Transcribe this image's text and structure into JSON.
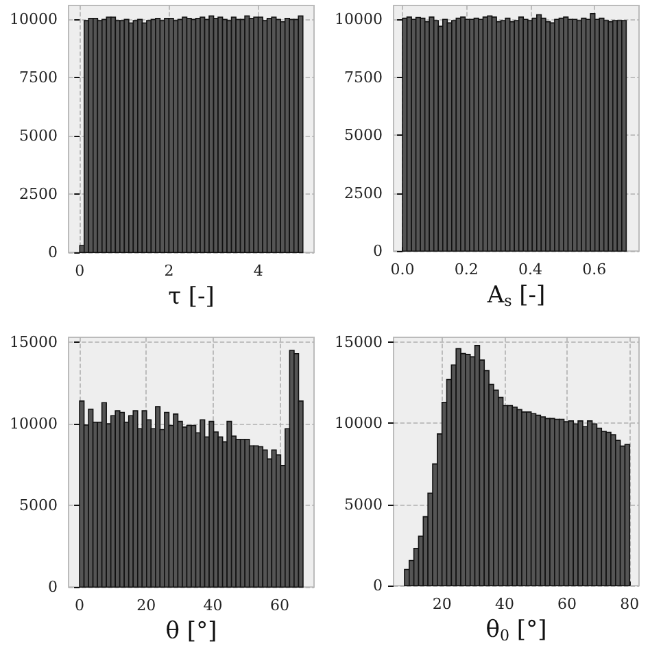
{
  "chart_data": [
    {
      "type": "histogram",
      "xlabel": "τ [-]",
      "color": "#555555",
      "grid": true,
      "bins": [
        0,
        0.1,
        0.2,
        0.3,
        0.4,
        0.5,
        0.6,
        0.7,
        0.8,
        0.9,
        1,
        1.1,
        1.2,
        1.3,
        1.4,
        1.5,
        1.6,
        1.7,
        1.8,
        1.9,
        2,
        2.1,
        2.2,
        2.3,
        2.4,
        2.5,
        2.6,
        2.7,
        2.8,
        2.9,
        3,
        3.1,
        3.2,
        3.3,
        3.4,
        3.5,
        3.6,
        3.7,
        3.8,
        3.9,
        4,
        4.1,
        4.2,
        4.3,
        4.4,
        4.5,
        4.6,
        4.7,
        4.8,
        4.9,
        5
      ],
      "values": [
        300,
        9950,
        10050,
        10050,
        9950,
        10000,
        10100,
        10100,
        9950,
        9950,
        10000,
        9850,
        9950,
        10000,
        9850,
        9950,
        10000,
        10050,
        9950,
        10050,
        10050,
        9950,
        10000,
        10100,
        10050,
        10000,
        10050,
        10100,
        10000,
        10150,
        10050,
        10100,
        10000,
        9950,
        10100,
        10000,
        10000,
        10150,
        10050,
        10100,
        10100,
        9950,
        10050,
        10100,
        10000,
        9900,
        10050,
        10000,
        10000,
        10150
      ],
      "xlim": [
        -0.25,
        5.25
      ],
      "xticks": [
        0,
        2,
        4
      ],
      "ylim": [
        0,
        10600
      ],
      "yticks": [
        0,
        2500,
        5000,
        7500,
        10000
      ]
    },
    {
      "type": "histogram",
      "xlabel": "A$_{s}$ [-]",
      "color": "#555555",
      "grid": true,
      "bins": [
        0,
        0.014,
        0.028,
        0.042,
        0.056,
        0.07,
        0.084,
        0.098,
        0.112,
        0.126,
        0.14,
        0.154,
        0.168,
        0.182,
        0.196,
        0.21,
        0.224,
        0.238,
        0.252,
        0.266,
        0.28,
        0.294,
        0.308,
        0.322,
        0.336,
        0.35,
        0.364,
        0.378,
        0.392,
        0.406,
        0.42,
        0.434,
        0.448,
        0.462,
        0.476,
        0.49,
        0.504,
        0.518,
        0.532,
        0.546,
        0.56,
        0.574,
        0.588,
        0.602,
        0.616,
        0.63,
        0.644,
        0.658,
        0.672,
        0.686,
        0.7
      ],
      "values": [
        10050,
        10100,
        10000,
        10080,
        10050,
        9900,
        10100,
        9950,
        9700,
        10000,
        9850,
        9950,
        10050,
        10100,
        10000,
        10000,
        10050,
        10000,
        10100,
        10150,
        10100,
        9900,
        9950,
        10050,
        9900,
        9950,
        10100,
        10000,
        9950,
        10050,
        10200,
        10050,
        9900,
        9850,
        10000,
        10050,
        10100,
        10000,
        10000,
        9950,
        10050,
        10000,
        10250,
        10000,
        10050,
        9950,
        9900,
        9950,
        9950,
        9950
      ],
      "xlim": [
        -0.028,
        0.74
      ],
      "xticks": [
        {
          "value": 0,
          "label": "0.0"
        },
        0.2,
        0.4,
        0.6
      ],
      "ylim": [
        0,
        10600
      ],
      "yticks": [
        0,
        2500,
        5000,
        7500,
        10000
      ]
    },
    {
      "type": "histogram",
      "xlabel": "θ [°]",
      "color": "#555555",
      "grid": true,
      "bins": [
        0,
        1.34,
        2.68,
        4.02,
        5.36,
        6.7,
        8.04,
        9.38,
        10.72,
        12.06,
        13.4,
        14.74,
        16.08,
        17.42,
        18.76,
        20.1,
        21.44,
        22.78,
        24.12,
        25.46,
        26.8,
        28.14,
        29.48,
        30.82,
        32.16,
        33.5,
        34.84,
        36.18,
        37.52,
        38.86,
        40.2,
        41.54,
        42.88,
        44.22,
        45.56,
        46.9,
        48.24,
        49.58,
        50.92,
        52.26,
        53.6,
        54.94,
        56.28,
        57.62,
        58.96,
        60.3,
        61.64,
        62.98,
        64.32,
        65.66,
        67
      ],
      "values": [
        11400,
        9930,
        10900,
        10100,
        10100,
        11300,
        10000,
        10500,
        10800,
        10700,
        10100,
        10500,
        10800,
        9700,
        10800,
        10250,
        9700,
        11050,
        9650,
        10700,
        9900,
        10600,
        10150,
        9800,
        9900,
        9900,
        9450,
        10250,
        9200,
        10150,
        9500,
        9200,
        8900,
        10150,
        9250,
        9050,
        9050,
        9050,
        8650,
        8650,
        8600,
        8400,
        7850,
        8400,
        8100,
        7450,
        9700,
        14500,
        14300,
        11400
      ],
      "xlim": [
        -3.3,
        70.3
      ],
      "xticks": [
        0,
        20,
        40,
        60
      ],
      "ylim": [
        0,
        15300
      ],
      "yticks": [
        0,
        5000,
        10000,
        15000
      ]
    },
    {
      "type": "histogram",
      "xlabel": "θ$_{0}$ [°]",
      "color": "#555555",
      "grid": true,
      "bins": [
        8,
        9.5,
        11,
        12.5,
        14,
        15.5,
        17,
        18.5,
        20,
        21.5,
        23,
        24.5,
        26,
        27.5,
        29,
        30.5,
        32,
        33.5,
        35,
        36.5,
        38,
        39.5,
        41,
        42.5,
        44,
        45.5,
        47,
        48.5,
        50,
        51.5,
        53,
        54.5,
        56,
        57.5,
        59,
        60.5,
        62,
        63.5,
        65,
        66.5,
        68,
        69.5,
        71,
        72.5,
        74,
        75.5,
        77,
        78.5,
        80
      ],
      "values": [
        1000,
        1550,
        2300,
        3050,
        4250,
        5700,
        7500,
        9350,
        11300,
        12700,
        13600,
        14600,
        14300,
        14250,
        14100,
        14800,
        13900,
        13250,
        12400,
        12050,
        11600,
        11100,
        11100,
        11000,
        10850,
        10700,
        10700,
        10600,
        10500,
        10400,
        10300,
        10300,
        10250,
        10250,
        10100,
        10150,
        9970,
        10150,
        9800,
        10150,
        9970,
        9700,
        9500,
        9450,
        9300,
        8950,
        8600,
        8700
      ],
      "xlim": [
        4.5,
        83
      ],
      "xticks": [
        20,
        40,
        60,
        80
      ],
      "ylim": [
        0,
        15300
      ],
      "yticks": [
        0,
        5000,
        10000,
        15000
      ]
    }
  ]
}
